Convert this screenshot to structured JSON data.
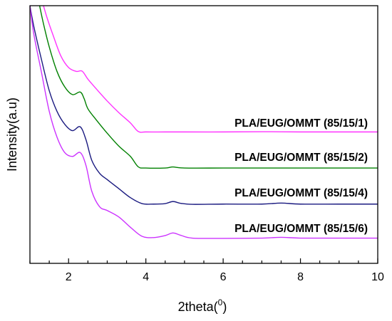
{
  "chart_data": {
    "type": "line",
    "title": "",
    "xlabel": "2theta(",
    "xlabel_superscript": "0",
    "xlabel_suffix": ")",
    "ylabel": "Intensity(a.u)",
    "xlim": [
      1,
      10
    ],
    "ylim": [
      0,
      100
    ],
    "x_ticks": [
      2,
      4,
      6,
      8,
      10
    ],
    "x_tick_labels": [
      "2",
      "4",
      "6",
      "8",
      "10"
    ],
    "y_ticks_shown": false,
    "grid": false,
    "legend": "inline labels next to curves",
    "series": [
      {
        "name": "PLA/EUG/OMMT (85/15/1)",
        "color": "#ff33ff",
        "x": [
          1.35,
          1.45,
          1.6,
          1.8,
          2.0,
          2.2,
          2.35,
          2.5,
          2.7,
          3.0,
          3.3,
          3.6,
          3.8,
          4.0,
          4.5,
          5.0,
          6.0,
          7.0,
          8.0,
          9.0,
          10.0
        ],
        "y": [
          100,
          95,
          88.5,
          80.5,
          76,
          74.5,
          74.6,
          71.5,
          68,
          63,
          58.5,
          54.5,
          51.2,
          51.0,
          51.0,
          51.0,
          51.0,
          51.1,
          51.0,
          51.0,
          51.0
        ]
      },
      {
        "name": "PLA/EUG/OMMT (85/15/2)",
        "color": "#008000",
        "x": [
          1.25,
          1.35,
          1.5,
          1.7,
          1.9,
          2.1,
          2.3,
          2.4,
          2.5,
          2.7,
          3.0,
          3.3,
          3.6,
          3.8,
          4.0,
          4.5,
          4.7,
          5.0,
          6.0,
          7.0,
          8.0,
          9.0,
          10.0
        ],
        "y": [
          100,
          93,
          84,
          74.5,
          68.5,
          65.5,
          66.5,
          64,
          60,
          56,
          50.5,
          45.5,
          41.5,
          37.5,
          37.0,
          37.0,
          37.4,
          37.0,
          37.0,
          37.0,
          37.0,
          37.0,
          37.0
        ]
      },
      {
        "name": "PLA/EUG/OMMT (85/15/4)",
        "color": "#1a1a80",
        "x": [
          1.0,
          1.1,
          1.3,
          1.5,
          1.7,
          1.9,
          2.1,
          2.3,
          2.45,
          2.6,
          2.8,
          3.0,
          3.3,
          3.6,
          3.9,
          4.2,
          4.5,
          4.7,
          4.9,
          5.2,
          6.0,
          7.0,
          7.5,
          8.0,
          9.0,
          10.0
        ],
        "y": [
          100,
          92,
          79,
          67,
          59,
          54,
          51.5,
          53,
          48,
          40,
          35,
          32.5,
          29,
          25.5,
          23.2,
          23.0,
          23.2,
          24.0,
          23.3,
          22.9,
          23.0,
          23.0,
          23.4,
          23.0,
          23.0,
          23.0
        ]
      },
      {
        "name": "PLA/EUG/OMMT (85/15/6)",
        "color": "#cc33ff",
        "x": [
          1.0,
          1.1,
          1.3,
          1.5,
          1.7,
          1.9,
          2.1,
          2.3,
          2.45,
          2.6,
          2.8,
          3.0,
          3.3,
          3.6,
          3.9,
          4.2,
          4.5,
          4.7,
          4.9,
          5.2,
          6.0,
          7.0,
          7.5,
          8.0,
          9.0,
          10.0
        ],
        "y": [
          100,
          89,
          74,
          59,
          49,
          43,
          41.5,
          43,
          38,
          28,
          22,
          20.5,
          18,
          14,
          10.5,
          10.0,
          10.8,
          11.8,
          10.9,
          9.8,
          9.7,
          9.8,
          10.1,
          9.8,
          9.8,
          9.8
        ]
      }
    ]
  }
}
